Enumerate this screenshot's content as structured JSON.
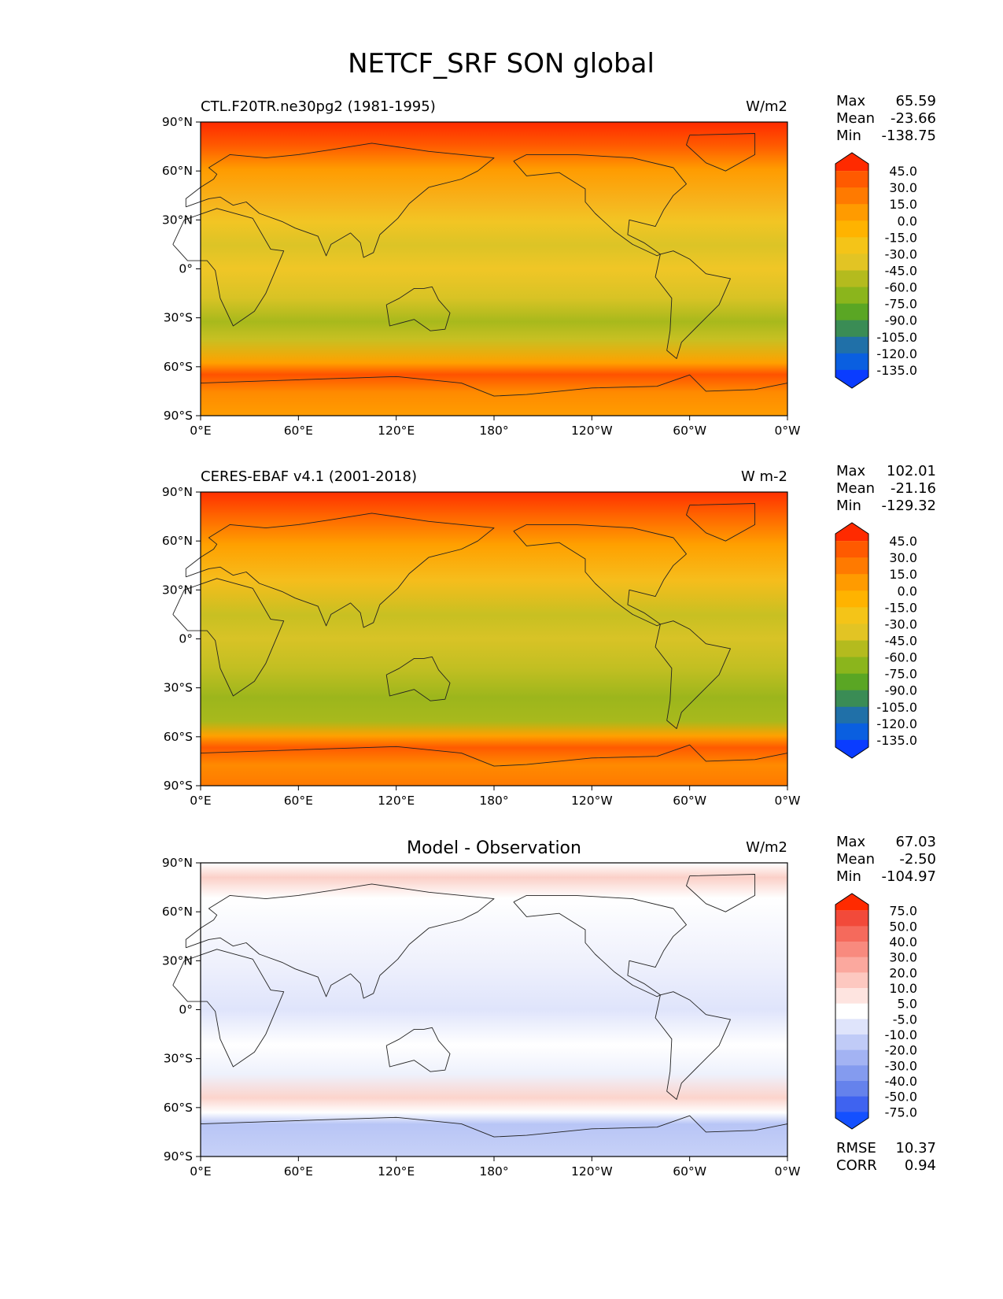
{
  "figure": {
    "title": "NETCF_SRF SON global"
  },
  "axes": {
    "lat_ticks": [
      "90°N",
      "60°N",
      "30°N",
      "0°",
      "30°S",
      "60°S",
      "90°S"
    ],
    "lon_ticks": [
      "0°E",
      "60°E",
      "120°E",
      "180°",
      "120°W",
      "60°W",
      "0°W"
    ]
  },
  "panels": [
    {
      "left_title": "CTL.F20TR.ne30pg2 (1981-1995)",
      "center_title": "",
      "units": "W/m2",
      "stats": [
        {
          "label": "Max",
          "value": "65.59"
        },
        {
          "label": "Mean",
          "value": "-23.66"
        },
        {
          "label": "Min",
          "value": "-138.75"
        }
      ],
      "footer_stats": [],
      "colorbar": {
        "labels": [
          "45.0",
          "30.0",
          "15.0",
          "0.0",
          "-15.0",
          "-30.0",
          "-45.0",
          "-60.0",
          "-75.0",
          "-90.0",
          "-105.0",
          "-120.0",
          "-135.0"
        ],
        "colors": [
          "#ff2a00",
          "#ff5a00",
          "#ff7a00",
          "#ff9b00",
          "#ffb300",
          "#f4c418",
          "#e2c424",
          "#b4bb1e",
          "#8bb51c",
          "#5aa624",
          "#3a8c55",
          "#2070a8",
          "#0a5fe0",
          "#0a3cff"
        ]
      }
    },
    {
      "left_title": "CERES-EBAF v4.1 (2001-2018)",
      "center_title": "",
      "units": "W m-2",
      "stats": [
        {
          "label": "Max",
          "value": "102.01"
        },
        {
          "label": "Mean",
          "value": "-21.16"
        },
        {
          "label": "Min",
          "value": "-129.32"
        }
      ],
      "footer_stats": [],
      "colorbar": {
        "labels": [
          "45.0",
          "30.0",
          "15.0",
          "0.0",
          "-15.0",
          "-30.0",
          "-45.0",
          "-60.0",
          "-75.0",
          "-90.0",
          "-105.0",
          "-120.0",
          "-135.0"
        ],
        "colors": [
          "#ff2a00",
          "#ff5a00",
          "#ff7a00",
          "#ff9b00",
          "#ffb300",
          "#f4c418",
          "#e2c424",
          "#b4bb1e",
          "#8bb51c",
          "#5aa624",
          "#3a8c55",
          "#2070a8",
          "#0a5fe0",
          "#0a3cff"
        ]
      }
    },
    {
      "left_title": "",
      "center_title": "Model - Observation",
      "units": "W/m2",
      "stats": [
        {
          "label": "Max",
          "value": "67.03"
        },
        {
          "label": "Mean",
          "value": "-2.50"
        },
        {
          "label": "Min",
          "value": "-104.97"
        }
      ],
      "footer_stats": [
        {
          "label": "RMSE",
          "value": "10.37"
        },
        {
          "label": "CORR",
          "value": "0.94"
        }
      ],
      "colorbar": {
        "labels": [
          "75.0",
          "50.0",
          "40.0",
          "30.0",
          "20.0",
          "10.0",
          "5.0",
          "-5.0",
          "-10.0",
          "-20.0",
          "-30.0",
          "-40.0",
          "-50.0",
          "-75.0"
        ],
        "colors": [
          "#ff2a00",
          "#f24a3a",
          "#f56a5c",
          "#f88a7e",
          "#fba89e",
          "#fdc8c0",
          "#fee4e0",
          "#ffffff",
          "#dfe4fb",
          "#c0cbf7",
          "#a3b3f3",
          "#849bef",
          "#6582ec",
          "#3f63f0",
          "#1450ff"
        ]
      }
    }
  ]
}
